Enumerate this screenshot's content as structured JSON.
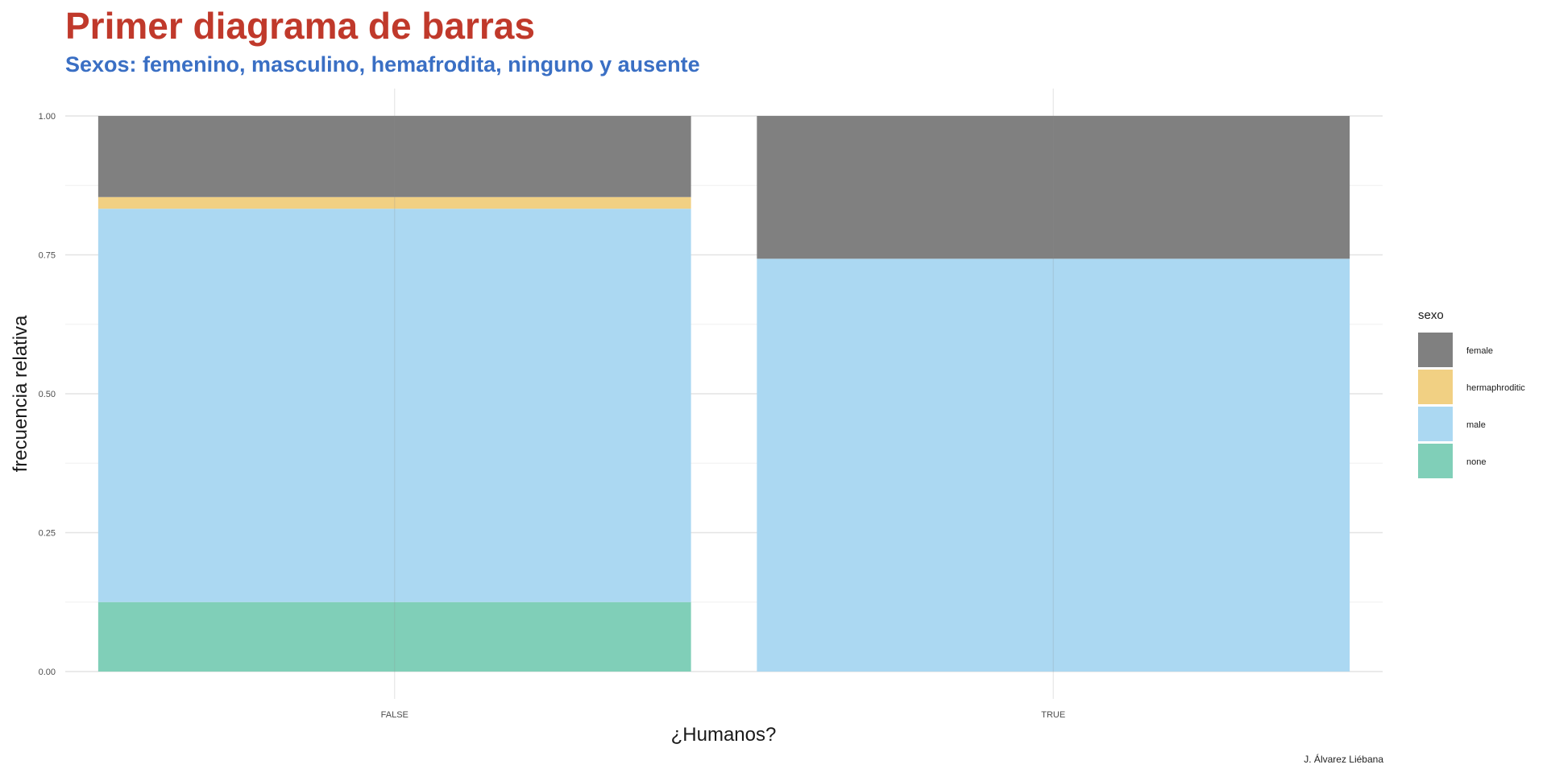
{
  "chart_data": {
    "type": "bar",
    "stacked": true,
    "title": "Primer diagrama de barras",
    "subtitle": "Sexos: femenino, masculino, hemafrodita, ninguno y ausente",
    "xlabel": "¿Humanos?",
    "ylabel": "frecuencia relativa",
    "caption": "J. Álvarez Liébana",
    "categories": [
      "FALSE",
      "TRUE"
    ],
    "ylim": [
      0,
      1
    ],
    "y_ticks": [
      "0.00",
      "0.25",
      "0.50",
      "0.75",
      "1.00"
    ],
    "grid": true,
    "legend": {
      "title": "sexo",
      "position": "right"
    },
    "series": [
      {
        "name": "female",
        "color": "#808080",
        "values": [
          0.146,
          0.257
        ]
      },
      {
        "name": "hermaphroditic",
        "color": "#f1d083",
        "values": [
          0.021,
          0
        ]
      },
      {
        "name": "male",
        "color": "#abd8f2",
        "values": [
          0.708,
          0.743
        ]
      },
      {
        "name": "none",
        "color": "#80cfb8",
        "values": [
          0.125,
          0
        ]
      }
    ]
  },
  "colors": {
    "title": "#c0392b",
    "subtitle": "#3a6fc4",
    "axis_text": "#4d4d4d",
    "axis_title": "#1a1a1a"
  }
}
